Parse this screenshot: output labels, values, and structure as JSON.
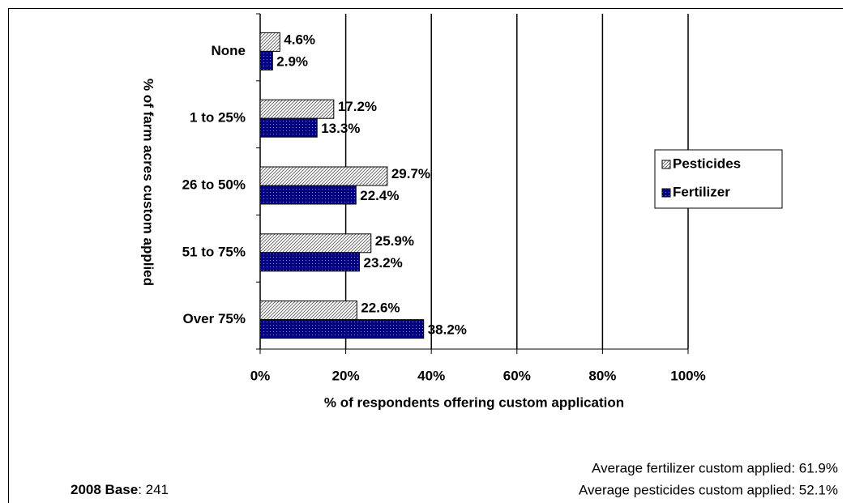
{
  "chart_data": {
    "type": "hbar",
    "y_axis_label": "% of farm acres custom applied",
    "x_axis_label": "% of respondents offering custom application",
    "categories": [
      "None",
      "1 to 25%",
      "26 to 50%",
      "51 to 75%",
      "Over 75%"
    ],
    "series": [
      {
        "name": "Pesticides",
        "color": "#ffffff",
        "values": [
          4.6,
          17.2,
          29.7,
          25.9,
          22.6
        ],
        "value_labels": [
          "4.6%",
          "17.2%",
          "29.7%",
          "25.9%",
          "22.6%"
        ]
      },
      {
        "name": "Fertilizer",
        "color": "#000080",
        "values": [
          2.9,
          13.3,
          22.4,
          23.2,
          38.2
        ],
        "value_labels": [
          "2.9%",
          "13.3%",
          "22.4%",
          "23.2%",
          "38.2%"
        ]
      }
    ],
    "xlim": [
      0,
      100
    ],
    "xticks": [
      {
        "value": 0,
        "label": "0%"
      },
      {
        "value": 20,
        "label": "20%"
      },
      {
        "value": 40,
        "label": "40%"
      },
      {
        "value": 60,
        "label": "60%"
      },
      {
        "value": 80,
        "label": "80%"
      },
      {
        "value": 100,
        "label": "100%"
      }
    ],
    "grid": true,
    "legend": "right",
    "notes": {
      "base_label": "2008 Base",
      "base_value": ": 241",
      "avg_fertilizer": "Average fertilizer custom applied: 61.9%",
      "avg_pesticides": "Average pesticides custom applied: 52.1%"
    }
  }
}
